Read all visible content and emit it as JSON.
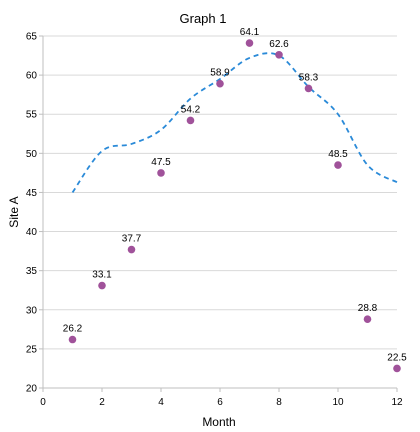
{
  "chart_data": {
    "type": "scatter",
    "title": "Graph 1",
    "xlabel": "Month",
    "ylabel": "Site A",
    "xlim": [
      0,
      12
    ],
    "ylim": [
      20,
      65
    ],
    "xticks": [
      0,
      2,
      4,
      6,
      8,
      10,
      12
    ],
    "yticks": [
      20,
      25,
      30,
      35,
      40,
      45,
      50,
      55,
      60,
      65
    ],
    "grid": "horizontal",
    "series": [
      {
        "kind": "scatter",
        "color": "#a0529a",
        "x": [
          1,
          2,
          3,
          4,
          5,
          6,
          7,
          8,
          9,
          10,
          11,
          12
        ],
        "y": [
          26.2,
          33.1,
          37.7,
          47.5,
          54.2,
          58.9,
          64.1,
          62.6,
          58.3,
          48.5,
          28.8,
          22.5
        ],
        "labels": [
          "26.2",
          "33.1",
          "37.7",
          "47.5",
          "54.2",
          "58.9",
          "64.1",
          "62.6",
          "58.3",
          "48.5",
          "28.8",
          "22.5"
        ]
      },
      {
        "kind": "line",
        "style": "dashed",
        "color": "#2a8ad8",
        "x": [
          1,
          2,
          3,
          4,
          5,
          6,
          7,
          8,
          9,
          10,
          11,
          12
        ],
        "y": [
          45.0,
          50.3,
          51.2,
          53.0,
          57.0,
          59.5,
          62.2,
          62.5,
          58.5,
          55.0,
          48.5,
          46.3
        ]
      }
    ]
  }
}
